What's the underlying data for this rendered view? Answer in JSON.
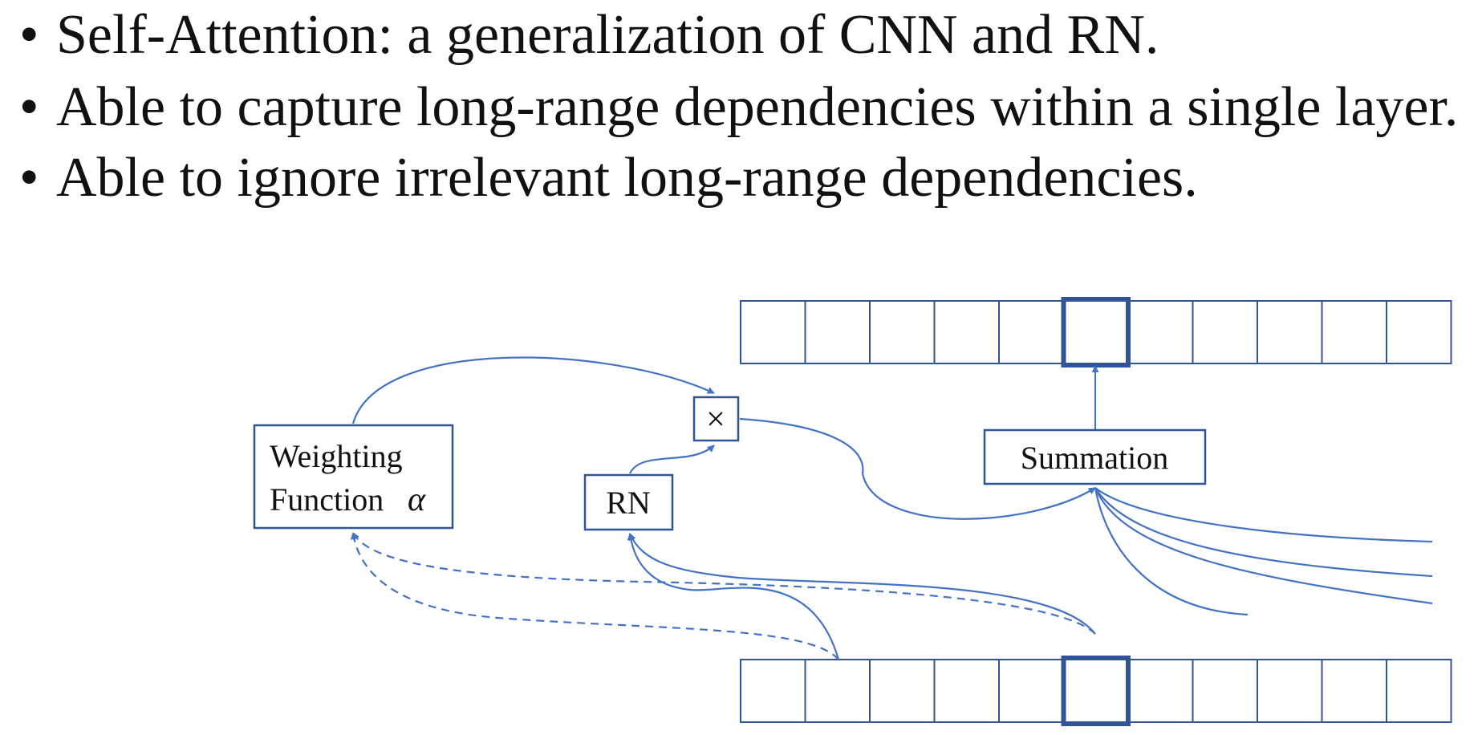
{
  "bullets": [
    "Self-Attention: a generalization of CNN and RN.",
    "Able to capture long-range dependencies within a single layer.",
    "Able to ignore irrelevant long-range dependencies."
  ],
  "bullet_symbol": "•",
  "diagram": {
    "weighting_line1": "Weighting",
    "weighting_line2": "Function",
    "alpha_symbol": "α",
    "multiply_symbol": "×",
    "rn_label": "RN",
    "summation_label": "Summation",
    "cells_per_row": 11,
    "highlighted_cell_index": 5,
    "colors": {
      "stroke": "#2f5597",
      "edge": "#4472c4",
      "text": "#111111"
    }
  }
}
